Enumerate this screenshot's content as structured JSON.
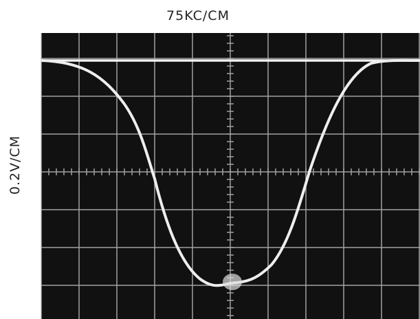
{
  "header": {
    "horizontal_scale": "75KC/CM"
  },
  "side": {
    "vertical_scale": "0.2V/CM"
  }
}
